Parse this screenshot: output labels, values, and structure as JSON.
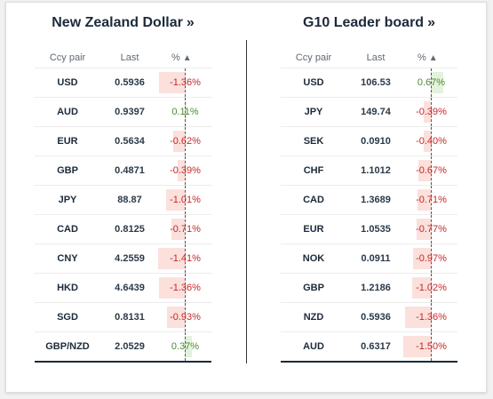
{
  "left": {
    "title": "New Zealand Dollar",
    "arrow": "»",
    "headers": {
      "pair": "Ccy pair",
      "last": "Last",
      "pct": "%",
      "sort": "▲"
    },
    "rows": [
      {
        "pair": "USD",
        "last": "0.5936",
        "pct": "-1.36%",
        "value": -1.36
      },
      {
        "pair": "AUD",
        "last": "0.9397",
        "pct": "0.11%",
        "value": 0.11
      },
      {
        "pair": "EUR",
        "last": "0.5634",
        "pct": "-0.62%",
        "value": -0.62
      },
      {
        "pair": "GBP",
        "last": "0.4871",
        "pct": "-0.39%",
        "value": -0.39
      },
      {
        "pair": "JPY",
        "last": "88.87",
        "pct": "-1.01%",
        "value": -1.01
      },
      {
        "pair": "CAD",
        "last": "0.8125",
        "pct": "-0.71%",
        "value": -0.71
      },
      {
        "pair": "CNY",
        "last": "4.2559",
        "pct": "-1.41%",
        "value": -1.41
      },
      {
        "pair": "HKD",
        "last": "4.6439",
        "pct": "-1.36%",
        "value": -1.36
      },
      {
        "pair": "SGD",
        "last": "0.8131",
        "pct": "-0.93%",
        "value": -0.93
      },
      {
        "pair": "GBP/NZD",
        "last": "2.0529",
        "pct": "0.37%",
        "value": 0.37
      }
    ]
  },
  "right": {
    "title": "G10 Leader board",
    "arrow": "»",
    "headers": {
      "pair": "Ccy pair",
      "last": "Last",
      "pct": "%",
      "sort": "▲"
    },
    "rows": [
      {
        "pair": "USD",
        "last": "106.53",
        "pct": "0.67%",
        "value": 0.67
      },
      {
        "pair": "JPY",
        "last": "149.74",
        "pct": "-0.39%",
        "value": -0.39
      },
      {
        "pair": "SEK",
        "last": "0.0910",
        "pct": "-0.40%",
        "value": -0.4
      },
      {
        "pair": "CHF",
        "last": "1.1012",
        "pct": "-0.67%",
        "value": -0.67
      },
      {
        "pair": "CAD",
        "last": "1.3689",
        "pct": "-0.71%",
        "value": -0.71
      },
      {
        "pair": "EUR",
        "last": "1.0535",
        "pct": "-0.77%",
        "value": -0.77
      },
      {
        "pair": "NOK",
        "last": "0.0911",
        "pct": "-0.97%",
        "value": -0.97
      },
      {
        "pair": "GBP",
        "last": "1.2186",
        "pct": "-1.02%",
        "value": -1.02
      },
      {
        "pair": "NZD",
        "last": "0.5936",
        "pct": "-1.36%",
        "value": -1.36
      },
      {
        "pair": "AUD",
        "last": "0.6317",
        "pct": "-1.50%",
        "value": -1.5
      }
    ]
  },
  "colors": {
    "negative_text": "#c62828",
    "positive_text": "#4c8a33",
    "negative_bar": "#fbe0dc",
    "positive_bar": "#e3f2dc"
  }
}
